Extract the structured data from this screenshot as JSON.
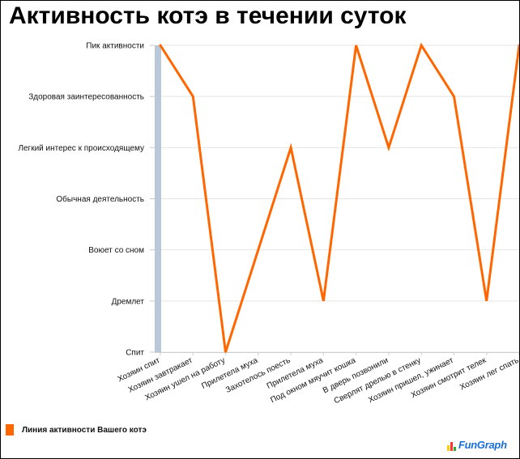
{
  "chart_data": {
    "type": "line",
    "title": "Активность котэ в течении суток",
    "y_levels": [
      "Спит",
      "Дремлет",
      "Воюет со сном",
      "Обычная деятельность",
      "Легкий интерес к происходящему",
      "Здоровая заинтересованность",
      "Пик активности"
    ],
    "categories": [
      "Хозяин спит",
      "Хозяин завтракает",
      "Хозяин ушел на работу",
      "Прилетела муха",
      "Захотелось поесть",
      "Прилетела муха",
      "Под окном мяучит кошка",
      "В дверь позвонили",
      "Сверлят дрелью в стенку",
      "Хозяин пришел, ужинает",
      "Хозяин смотрит телек",
      "Хозяин лег спать"
    ],
    "series": [
      {
        "name": "Линия активности Вашего котэ",
        "color": "#ff6600",
        "values": [
          "Пик активности",
          "Здоровая заинтересованность",
          "Спит",
          "Воюет со сном",
          "Легкий интерес к происходящему",
          "Дремлет",
          "Пик активности",
          "Легкий интерес к происходящему",
          "Пик активности",
          "Здоровая заинтересованность",
          "Дремлет",
          "Пик активности"
        ]
      }
    ],
    "grid": true,
    "legend_position": "bottom-left"
  },
  "legend": {
    "label": "Линия активности Вашего котэ",
    "color": "#ff6600"
  },
  "logo": {
    "text": "FunGraph",
    "icon": "bar-chart-icon"
  }
}
